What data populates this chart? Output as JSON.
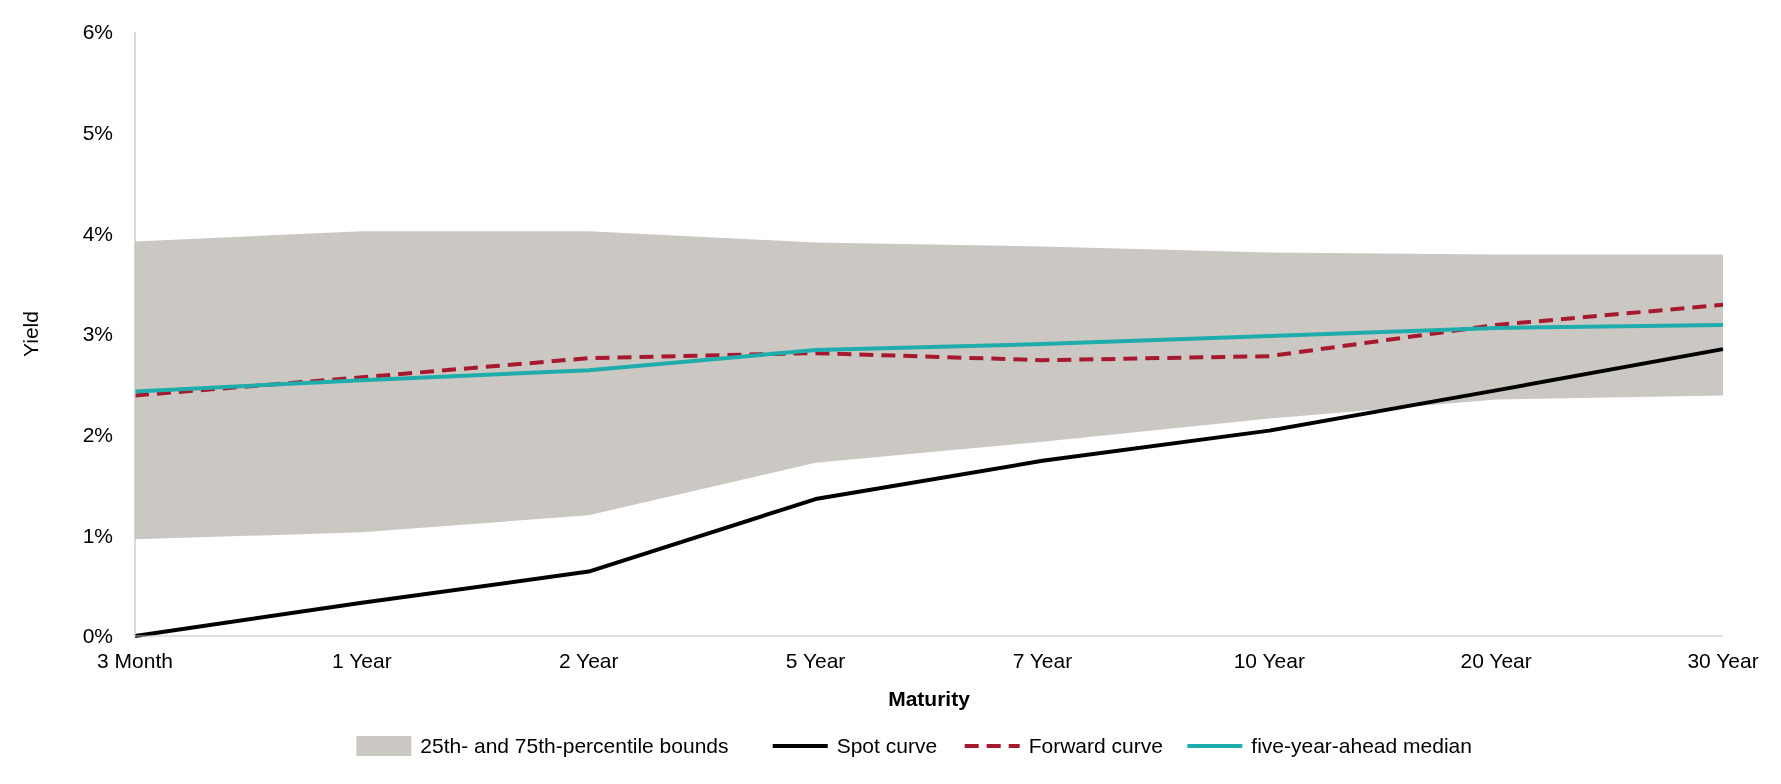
{
  "chart_data": {
    "type": "line",
    "xlabel": "Maturity",
    "ylabel": "Yield",
    "categories": [
      "3 Month",
      "1 Year",
      "2 Year",
      "5 Year",
      "7 Year",
      "10 Year",
      "20 Year",
      "30 Year"
    ],
    "ylim": [
      0,
      6
    ],
    "yticks": [
      {
        "value": 0,
        "label": "0%"
      },
      {
        "value": 1,
        "label": "1%"
      },
      {
        "value": 2,
        "label": "2%"
      },
      {
        "value": 3,
        "label": "3%"
      },
      {
        "value": 4,
        "label": "4%"
      },
      {
        "value": 5,
        "label": "5%"
      },
      {
        "value": 6,
        "label": "6%"
      }
    ],
    "legend": "bottom",
    "grid": false,
    "series": [
      {
        "name": "25th- and 75th-percentile bounds",
        "type": "area",
        "color": "#cbc8c4",
        "values": [
          null,
          null,
          null,
          null,
          null,
          null,
          null,
          null
        ],
        "lower": [
          0.96,
          1.03,
          1.2,
          1.72,
          1.93,
          2.16,
          2.35,
          2.39
        ],
        "upper": [
          3.92,
          4.02,
          4.02,
          3.91,
          3.87,
          3.81,
          3.79,
          3.79
        ]
      },
      {
        "name": "Spot curve",
        "color": "#000000",
        "line_style": "solid",
        "values": [
          0,
          0.33,
          0.64,
          1.36,
          1.74,
          2.04,
          2.44,
          2.85
        ]
      },
      {
        "name": "Forward curve",
        "color": "#a6192e",
        "line_style": "dashed",
        "values": [
          2.39,
          2.57,
          2.76,
          2.81,
          2.74,
          2.78,
          3.09,
          3.29
        ]
      },
      {
        "name": "five-year-ahead median",
        "color": "#1fadac",
        "line_style": "solid",
        "values": [
          2.43,
          2.54,
          2.64,
          2.84,
          2.9,
          2.98,
          3.06,
          3.09
        ]
      }
    ]
  }
}
